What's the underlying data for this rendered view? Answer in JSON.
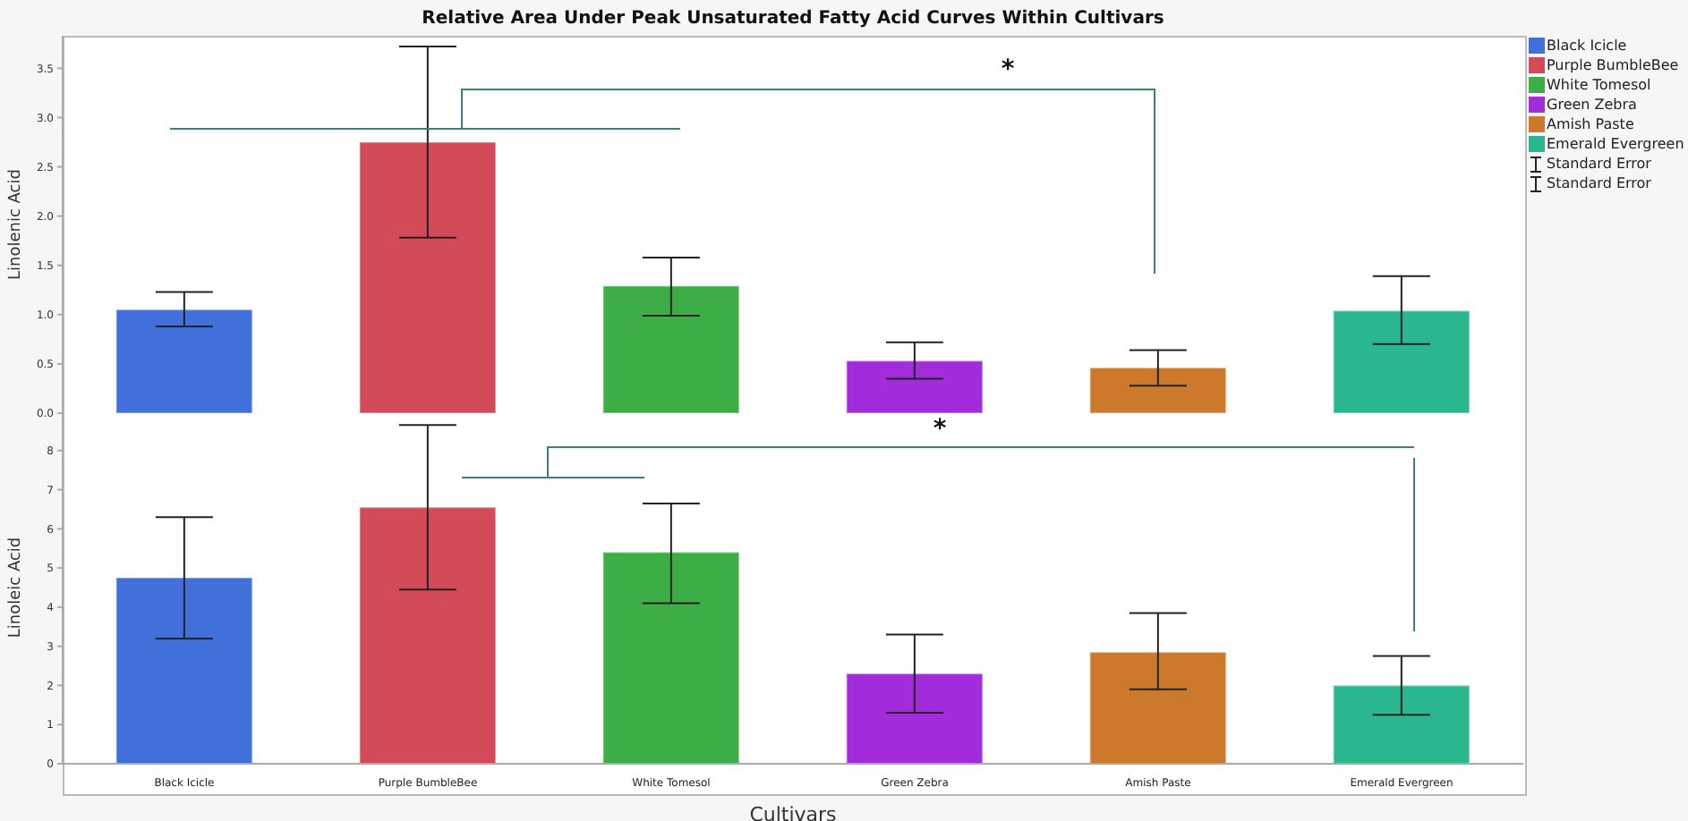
{
  "chart_data": [
    {
      "type": "bar",
      "title": "Relative Area Under Peak Unsaturated Fatty Acid Curves Within Cultivars",
      "ylabel": "Linolenic Acid",
      "categories": [
        null,
        null,
        null,
        null,
        null,
        null
      ],
      "stacked": true,
      "series": [
        {
          "name": "Black Icicle",
          "color": "#4170db",
          "values": [
            1.05,
            null,
            null,
            null,
            null,
            null
          ],
          "errors": [
            [
              0.88,
              1.23
            ],
            null,
            null,
            null,
            null,
            null
          ]
        },
        {
          "name": "Purple BumbleBee",
          "color": "#d34a58",
          "values": [
            null,
            2.75,
            null,
            null,
            null,
            null
          ],
          "errors": [
            null,
            [
              1.78,
              3.72
            ],
            null,
            null,
            null,
            null
          ]
        },
        {
          "name": "White Tomesol",
          "color": "#3dae45",
          "values": [
            null,
            null,
            1.29,
            null,
            null,
            null
          ],
          "errors": [
            null,
            null,
            [
              0.99,
              1.58
            ],
            null,
            null,
            null
          ]
        },
        {
          "name": "Green Zebra",
          "color": "#a22bdb",
          "values": [
            null,
            null,
            null,
            0.53,
            null,
            null
          ],
          "errors": [
            null,
            null,
            null,
            [
              0.35,
              0.72
            ],
            null,
            null
          ]
        },
        {
          "name": "Amish Paste",
          "color": "#cd792b",
          "values": [
            null,
            null,
            null,
            null,
            0.46,
            null
          ],
          "errors": [
            null,
            null,
            null,
            null,
            [
              0.28,
              0.64
            ],
            null
          ]
        },
        {
          "name": "Emerald Evergreen",
          "color": "#2ab68e",
          "values": [
            null,
            null,
            null,
            null,
            null,
            1.04
          ],
          "errors": [
            null,
            null,
            null,
            null,
            null,
            [
              0.7,
              1.39
            ]
          ]
        }
      ],
      "ylim": [
        0,
        3.83
      ],
      "yticks": [
        {
          "value": 0,
          "label": "0.0"
        },
        0.5,
        {
          "value": 1,
          "label": "1.0"
        },
        1.5,
        {
          "value": 2,
          "label": "2.0"
        },
        2.5,
        {
          "value": 3,
          "label": "3.0"
        },
        3.5
      ],
      "tick_labels": "y",
      "legend": "top right",
      "annotations": [
        "*",
        "Standard Error"
      ]
    },
    {
      "type": "bar",
      "xlabel": "Cultivars",
      "ylabel": "Linoleic Acid",
      "categories": [
        "Black Icicle",
        "Purple BumbleBee",
        "White Tomesol",
        "Green Zebra",
        "Amish Paste",
        "Emerald Evergreen"
      ],
      "stacked": true,
      "series": [
        {
          "color": "#4170db",
          "values": [
            4.75,
            null,
            null,
            null,
            null,
            null
          ],
          "errors": [
            [
              3.2,
              6.3
            ],
            null,
            null,
            null,
            null,
            null
          ]
        },
        {
          "color": "#d34a58",
          "values": [
            null,
            6.55,
            null,
            null,
            null,
            null
          ],
          "errors": [
            null,
            [
              4.45,
              8.65
            ],
            null,
            null,
            null,
            null
          ]
        },
        {
          "color": "#3dae45",
          "values": [
            null,
            null,
            5.4,
            null,
            null,
            null
          ],
          "errors": [
            null,
            null,
            [
              4.1,
              6.65
            ],
            null,
            null,
            null
          ]
        },
        {
          "color": "#a22bdb",
          "values": [
            null,
            null,
            null,
            2.3,
            null,
            null
          ],
          "errors": [
            null,
            null,
            null,
            [
              1.3,
              3.3
            ],
            null,
            null
          ]
        },
        {
          "color": "#cd792b",
          "values": [
            null,
            null,
            null,
            null,
            2.85,
            null
          ],
          "errors": [
            null,
            null,
            null,
            null,
            [
              1.9,
              3.85
            ],
            null
          ]
        },
        {
          "color": "#2ab68e",
          "values": [
            null,
            null,
            null,
            null,
            null,
            2.0
          ],
          "errors": [
            null,
            null,
            null,
            null,
            null,
            [
              1.25,
              2.75
            ]
          ]
        }
      ],
      "ylim": [
        0,
        9
      ],
      "yticks": [
        0,
        1,
        2,
        3,
        4,
        5,
        6,
        7,
        8
      ],
      "annotations": [
        "*",
        "Standard Error"
      ]
    }
  ]
}
